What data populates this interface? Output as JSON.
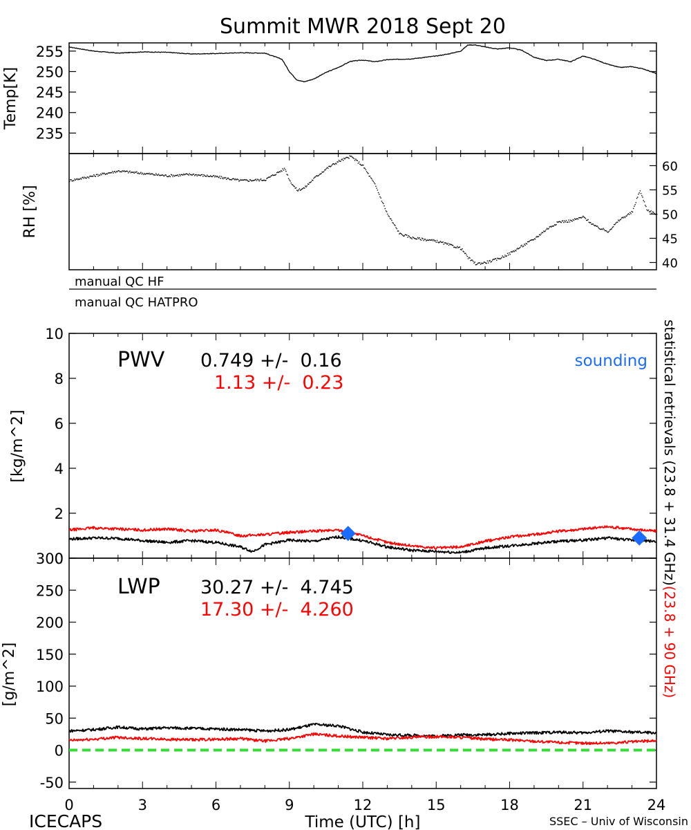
{
  "title": "Summit MWR 2018 Sept 20",
  "footer": {
    "left": "ICECAPS",
    "xlabel": "Time (UTC) [h]",
    "right": "SSEC – Univ of Wisconsin"
  },
  "qc": {
    "hf_label": "manual QC HF",
    "hatpro_label": "manual QC HATPRO"
  },
  "side_label": {
    "black_text": "statistical retrievals (23.8 + 31.4 GHz)",
    "red_text": "(23.8 + 90 GHz)"
  },
  "colors": {
    "series_black": "#000000",
    "series_red": "#ff0000",
    "sounding": "#1a6cff",
    "zero_line": "#33dd33"
  },
  "chart_data": [
    {
      "panel": "temp",
      "type": "line",
      "ylabel": "Temp[K]",
      "xlim": [
        0,
        24
      ],
      "ylim": [
        230,
        257
      ],
      "yticks": [
        235,
        240,
        245,
        250,
        255
      ],
      "series": [
        {
          "color": "#000000",
          "x": [
            0,
            0.5,
            1,
            2,
            3,
            4,
            5,
            6,
            7,
            8,
            8.7,
            9,
            9.3,
            9.6,
            10,
            10.5,
            11,
            11.5,
            12,
            12.5,
            13,
            14,
            15,
            15.5,
            16,
            16.3,
            16.6,
            17,
            17.5,
            18,
            18.5,
            19,
            19.5,
            20,
            20.5,
            21,
            21.5,
            22,
            22.5,
            23,
            23.5,
            24
          ],
          "y": [
            256,
            255.5,
            255,
            254.5,
            254.8,
            254.7,
            254.3,
            254.4,
            254.6,
            254.5,
            253,
            250,
            248,
            247.5,
            248.2,
            249.8,
            251,
            252.5,
            252.8,
            252.4,
            252.9,
            253.1,
            253.8,
            254.3,
            255,
            256.5,
            256.5,
            256,
            255.5,
            255.8,
            255.2,
            253.5,
            252.7,
            253,
            252.4,
            253.8,
            252.9,
            251.8,
            251,
            251.2,
            250.6,
            249.5
          ]
        }
      ]
    },
    {
      "panel": "rh",
      "type": "scatter",
      "ylabel": "RH [%]",
      "xlim": [
        0,
        24
      ],
      "ylim": [
        38.5,
        62.5
      ],
      "yticks": [
        40,
        45,
        50,
        55,
        60
      ],
      "series": [
        {
          "color": "#000000",
          "x": [
            0,
            0.5,
            1,
            2,
            3,
            4,
            5,
            6,
            7,
            8,
            8.8,
            9,
            9.3,
            9.6,
            10,
            10.5,
            11,
            11.5,
            12,
            12.5,
            13,
            13.5,
            14,
            15,
            16,
            16.3,
            16.6,
            17,
            17.5,
            18,
            18.5,
            19,
            19.5,
            20,
            20.5,
            21,
            21.5,
            22,
            22.5,
            23,
            23.3,
            23.6,
            24
          ],
          "y": [
            57,
            57.5,
            58,
            59,
            58.5,
            58,
            58.3,
            57.8,
            57,
            57.2,
            59.5,
            57,
            55,
            55.5,
            57.5,
            59.5,
            61,
            62,
            60,
            56,
            50,
            46,
            45.2,
            44.5,
            43,
            41,
            39.8,
            40.1,
            40.8,
            42,
            43.5,
            45,
            47,
            48.5,
            48.7,
            49.5,
            47.5,
            46.5,
            49,
            50.5,
            55,
            51,
            50
          ]
        }
      ]
    },
    {
      "panel": "pwv",
      "type": "line",
      "ylabel": "[kg/m^2]",
      "xlim": [
        0,
        24
      ],
      "ylim": [
        0,
        10
      ],
      "yticks": [
        0,
        2,
        4,
        6,
        8,
        10
      ],
      "annotation_label": "PWV",
      "stats_black": "0.749 +/-  0.16",
      "stats_red": "1.13 +/-  0.23",
      "legend_sounding": "sounding",
      "series": [
        {
          "color": "#000000",
          "x": [
            0,
            1,
            2,
            3,
            4,
            5,
            6,
            7,
            7.5,
            8,
            9,
            10,
            11,
            12,
            13,
            14,
            15,
            16,
            17,
            18,
            19,
            20,
            21,
            22,
            23,
            24
          ],
          "y": [
            0.85,
            0.9,
            0.88,
            0.78,
            0.7,
            0.78,
            0.7,
            0.5,
            0.3,
            0.6,
            0.8,
            0.75,
            0.95,
            0.78,
            0.5,
            0.35,
            0.3,
            0.25,
            0.45,
            0.55,
            0.65,
            0.75,
            0.8,
            0.9,
            0.8,
            0.75
          ]
        },
        {
          "color": "#ff0000",
          "x": [
            0,
            1,
            2,
            3,
            4,
            5,
            6,
            7,
            8,
            9,
            10,
            11,
            12,
            13,
            14,
            15,
            16,
            17,
            18,
            19,
            20,
            21,
            22,
            23,
            24
          ],
          "y": [
            1.25,
            1.35,
            1.3,
            1.25,
            1.3,
            1.2,
            1.25,
            1.0,
            1.05,
            1.15,
            1.2,
            1.25,
            1.0,
            0.7,
            0.55,
            0.45,
            0.5,
            0.75,
            0.95,
            1.05,
            1.2,
            1.3,
            1.4,
            1.3,
            1.2
          ]
        }
      ],
      "soundings": [
        {
          "x": 11.4,
          "y": 1.1
        },
        {
          "x": 23.3,
          "y": 0.9
        }
      ]
    },
    {
      "panel": "lwp",
      "type": "line",
      "ylabel": "[g/m^2]",
      "xlabel": "Time (UTC) [h]",
      "xlim": [
        0,
        24
      ],
      "ylim": [
        -60,
        300
      ],
      "yticks": [
        -50,
        0,
        50,
        100,
        150,
        200,
        250,
        300
      ],
      "xticks": [
        0,
        3,
        6,
        9,
        12,
        15,
        18,
        21,
        24
      ],
      "annotation_label": "LWP",
      "stats_black": "30.27 +/-  4.745",
      "stats_red": "17.30 +/-  4.260",
      "series": [
        {
          "color": "#000000",
          "x": [
            0,
            1,
            2,
            3,
            4,
            5,
            6,
            7,
            8,
            9,
            10,
            11,
            12,
            13,
            14,
            15,
            16,
            17,
            18,
            19,
            20,
            21,
            22,
            23,
            24
          ],
          "y": [
            30,
            32,
            36,
            33,
            35,
            34,
            33,
            32,
            30,
            32,
            40,
            38,
            28,
            24,
            23,
            22,
            24,
            24,
            26,
            27,
            28,
            27,
            30,
            28,
            27
          ]
        },
        {
          "color": "#ff0000",
          "x": [
            0,
            1,
            2,
            3,
            4,
            5,
            6,
            7,
            8,
            9,
            10,
            11,
            12,
            13,
            14,
            15,
            16,
            17,
            18,
            19,
            20,
            21,
            22,
            23,
            24
          ],
          "y": [
            15,
            17,
            20,
            18,
            17,
            16,
            17,
            18,
            14,
            18,
            25,
            22,
            20,
            18,
            20,
            21,
            20,
            17,
            16,
            14,
            12,
            11,
            11,
            13,
            15
          ]
        }
      ],
      "zero_line": 0
    }
  ]
}
